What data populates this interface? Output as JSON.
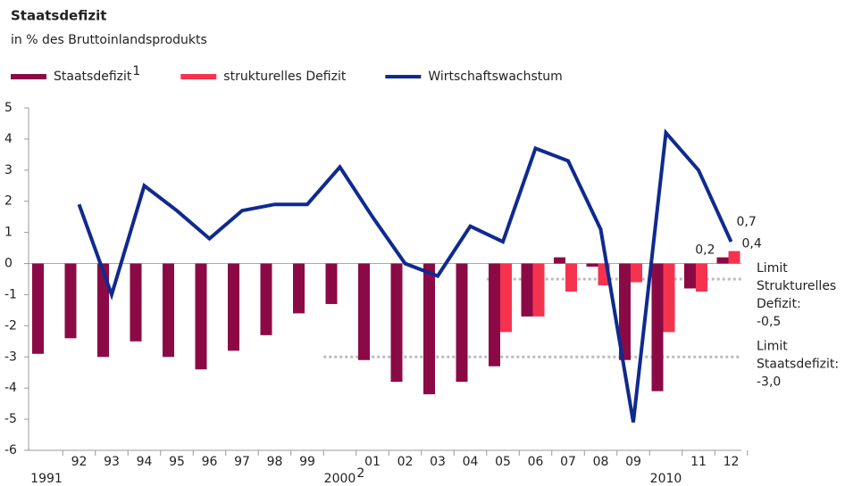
{
  "chart_data": {
    "type": "bar_line",
    "title": "Staatsdefizit",
    "subtitle": "in % des Bruttoinlandsprodukts",
    "categories": [
      "1991",
      "92",
      "93",
      "94",
      "95",
      "96",
      "97",
      "98",
      "99",
      "2000",
      "01",
      "02",
      "03",
      "04",
      "05",
      "06",
      "07",
      "08",
      "09",
      "2010",
      "11",
      "12"
    ],
    "category_notes": [
      null,
      null,
      null,
      null,
      null,
      null,
      null,
      null,
      null,
      "2",
      null,
      null,
      null,
      null,
      null,
      null,
      null,
      null,
      null,
      null,
      null,
      null
    ],
    "series": [
      {
        "name": "Staatsdefizit",
        "name_note": "1",
        "type": "bar",
        "color": "#8b0a45",
        "values": [
          -2.9,
          -2.4,
          -3.0,
          -2.5,
          -3.0,
          -3.4,
          -2.8,
          -2.3,
          -1.6,
          -1.3,
          -3.1,
          -3.8,
          -4.2,
          -3.8,
          -3.3,
          -1.7,
          0.2,
          -0.1,
          -3.1,
          -4.1,
          -0.8,
          0.2
        ],
        "value_labels": [
          null,
          null,
          null,
          null,
          null,
          null,
          null,
          null,
          null,
          null,
          null,
          null,
          null,
          null,
          null,
          null,
          null,
          null,
          null,
          null,
          null,
          "0,2"
        ]
      },
      {
        "name": "strukturelles Defizit",
        "type": "bar",
        "color": "#f5334f",
        "values": [
          null,
          null,
          null,
          null,
          null,
          null,
          null,
          null,
          null,
          null,
          null,
          null,
          null,
          null,
          -2.2,
          -1.7,
          -0.9,
          -0.7,
          -0.6,
          -2.2,
          -0.9,
          0.4
        ],
        "value_labels": [
          null,
          null,
          null,
          null,
          null,
          null,
          null,
          null,
          null,
          null,
          null,
          null,
          null,
          null,
          null,
          null,
          null,
          null,
          null,
          null,
          null,
          "0,4"
        ]
      },
      {
        "name": "Wirtschaftswachstum",
        "type": "line",
        "color": "#0f2a8f",
        "values": [
          null,
          1.9,
          -1.0,
          2.5,
          1.7,
          0.8,
          1.7,
          1.9,
          1.9,
          3.1,
          1.5,
          0.0,
          -0.4,
          1.2,
          0.7,
          3.7,
          3.3,
          1.1,
          -5.1,
          4.2,
          3.0,
          0.7
        ],
        "value_labels": [
          null,
          null,
          null,
          null,
          null,
          null,
          null,
          null,
          null,
          null,
          null,
          null,
          null,
          null,
          null,
          null,
          null,
          null,
          null,
          null,
          null,
          "0,7"
        ]
      }
    ],
    "reference_lines": [
      {
        "value": -0.5,
        "start": "05",
        "label_lines": [
          "Limit",
          "Strukturelles",
          "Defizit:",
          "-0,5"
        ]
      },
      {
        "value": -3.0,
        "start": "2000",
        "label_lines": [
          "Limit",
          "Staatsdefizit:",
          "-3,0"
        ]
      }
    ],
    "ylim": [
      -6,
      5
    ],
    "yticks": [
      -6,
      -5,
      -4,
      -3,
      -2,
      -1,
      0,
      1,
      2,
      3,
      4,
      5
    ],
    "grid": false
  }
}
